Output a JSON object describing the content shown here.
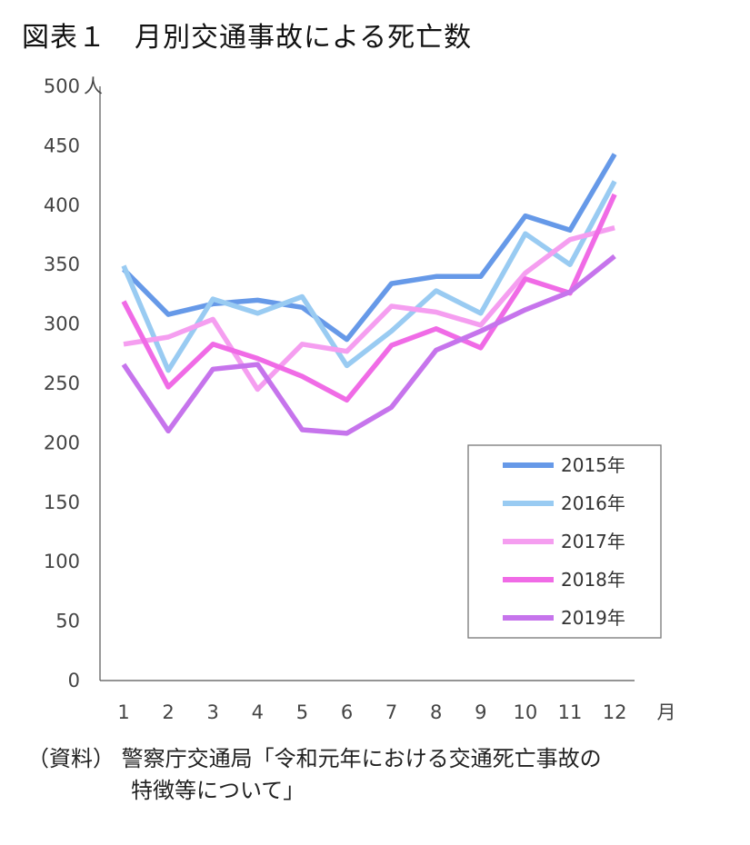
{
  "title": "図表１　月別交通事故による死亡数",
  "source": {
    "line1": "（資料） 警察庁交通局「令和元年における交通死亡事故の",
    "line2": "特徴等について」"
  },
  "chart_data": {
    "type": "line",
    "title": "図表１　月別交通事故による死亡数",
    "xlabel": "月",
    "ylabel": "人",
    "categories": [
      "1",
      "2",
      "3",
      "4",
      "5",
      "6",
      "7",
      "8",
      "9",
      "10",
      "11",
      "12"
    ],
    "ylim": [
      0,
      500
    ],
    "yticks": [
      0,
      50,
      100,
      150,
      200,
      250,
      300,
      350,
      400,
      450,
      500
    ],
    "ytick_labels": [
      "0",
      "50",
      "100",
      "150",
      "200",
      "250",
      "300",
      "350",
      "400",
      "450",
      "500"
    ],
    "grid": false,
    "legend_position": "bottom-right",
    "series": [
      {
        "name": "2015年",
        "color": "#6699e8",
        "values": [
          346,
          308,
          317,
          320,
          314,
          287,
          334,
          340,
          340,
          391,
          379,
          443
        ]
      },
      {
        "name": "2016年",
        "color": "#99cbf2",
        "values": [
          349,
          261,
          321,
          309,
          323,
          265,
          294,
          328,
          309,
          376,
          350,
          420
        ]
      },
      {
        "name": "2017年",
        "color": "#f59ef0",
        "values": [
          283,
          289,
          304,
          245,
          283,
          277,
          315,
          310,
          299,
          343,
          371,
          381
        ]
      },
      {
        "name": "2018年",
        "color": "#f06be6",
        "values": [
          319,
          247,
          283,
          271,
          256,
          236,
          282,
          296,
          280,
          338,
          326,
          409
        ]
      },
      {
        "name": "2019年",
        "color": "#c674ec",
        "values": [
          266,
          210,
          262,
          266,
          211,
          208,
          230,
          278,
          294,
          312,
          327,
          357
        ]
      }
    ]
  }
}
